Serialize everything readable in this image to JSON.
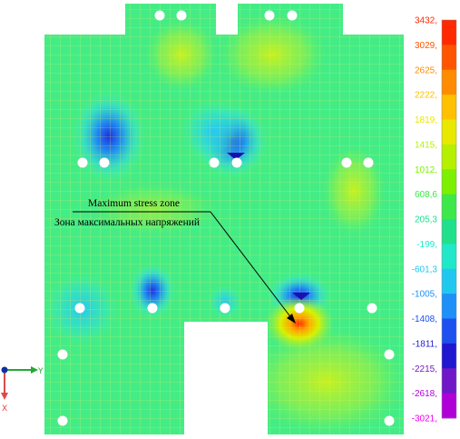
{
  "annotation": {
    "line1": "Maximum stress zone",
    "line2": "Зона максимальных напряжений"
  },
  "axes": {
    "y_label": "Y",
    "x_label": "X"
  },
  "legend": {
    "values": [
      "3432,",
      "3029,",
      "2625,",
      "2222,",
      "1819,",
      "1415,",
      "1012,",
      "608,6",
      "205,3",
      "-199,",
      "-601,3",
      "-1005,",
      "-1408,",
      "-1811,",
      "-2215,",
      "-2618,",
      "-3021,"
    ],
    "colors": [
      "#ff2a00",
      "#ff5500",
      "#ff8c00",
      "#ffc000",
      "#e8e800",
      "#b5f000",
      "#7cf000",
      "#3ce84a",
      "#20e08c",
      "#20e8c8",
      "#20c8f0",
      "#1e90f8",
      "#1e50f0",
      "#2018d0",
      "#7018c8",
      "#b000d8",
      "#f000f0"
    ]
  }
}
